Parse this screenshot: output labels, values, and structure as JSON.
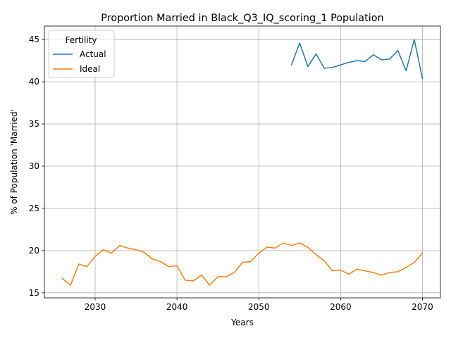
{
  "chart_data": {
    "type": "line",
    "title": "Proportion Married in Black_Q3_IQ_scoring_1 Population",
    "xlabel": "Years",
    "ylabel": "% of Population 'Married'",
    "xlim": [
      2023.8,
      2072.2
    ],
    "ylim": [
      14.4,
      46.6
    ],
    "xticks": [
      2030,
      2040,
      2050,
      2060,
      2070
    ],
    "yticks": [
      15,
      20,
      25,
      30,
      35,
      40,
      45
    ],
    "grid": true,
    "legend": {
      "title": "Fertility",
      "placement": "top-left"
    },
    "series": [
      {
        "name": "Actual",
        "color": "#1f77b4",
        "x": [
          2054,
          2055,
          2056,
          2057,
          2058,
          2059,
          2060,
          2061,
          2062,
          2063,
          2064,
          2065,
          2066,
          2067,
          2068,
          2069,
          2070
        ],
        "values": [
          42.0,
          44.6,
          41.8,
          43.3,
          41.6,
          41.7,
          42.0,
          42.3,
          42.5,
          42.4,
          43.2,
          42.6,
          42.7,
          43.7,
          41.3,
          45.0,
          40.4
        ]
      },
      {
        "name": "Ideal",
        "color": "#ff7f0e",
        "x": [
          2026,
          2027,
          2028,
          2029,
          2030,
          2031,
          2032,
          2033,
          2034,
          2035,
          2036,
          2037,
          2038,
          2039,
          2040,
          2041,
          2042,
          2043,
          2044,
          2045,
          2046,
          2047,
          2048,
          2049,
          2050,
          2051,
          2052,
          2053,
          2054,
          2055,
          2056,
          2057,
          2058,
          2059,
          2060,
          2061,
          2062,
          2063,
          2064,
          2065,
          2066,
          2067,
          2068,
          2069,
          2070
        ],
        "values": [
          16.7,
          15.9,
          18.4,
          18.1,
          19.3,
          20.1,
          19.7,
          20.6,
          20.3,
          20.1,
          19.8,
          19.0,
          18.7,
          18.1,
          18.2,
          16.5,
          16.4,
          17.1,
          15.9,
          16.9,
          16.9,
          17.4,
          18.6,
          18.7,
          19.7,
          20.4,
          20.3,
          20.9,
          20.6,
          20.9,
          20.4,
          19.5,
          18.8,
          17.6,
          17.7,
          17.2,
          17.8,
          17.6,
          17.4,
          17.1,
          17.4,
          17.5,
          18.0,
          18.6,
          19.7
        ]
      }
    ]
  }
}
